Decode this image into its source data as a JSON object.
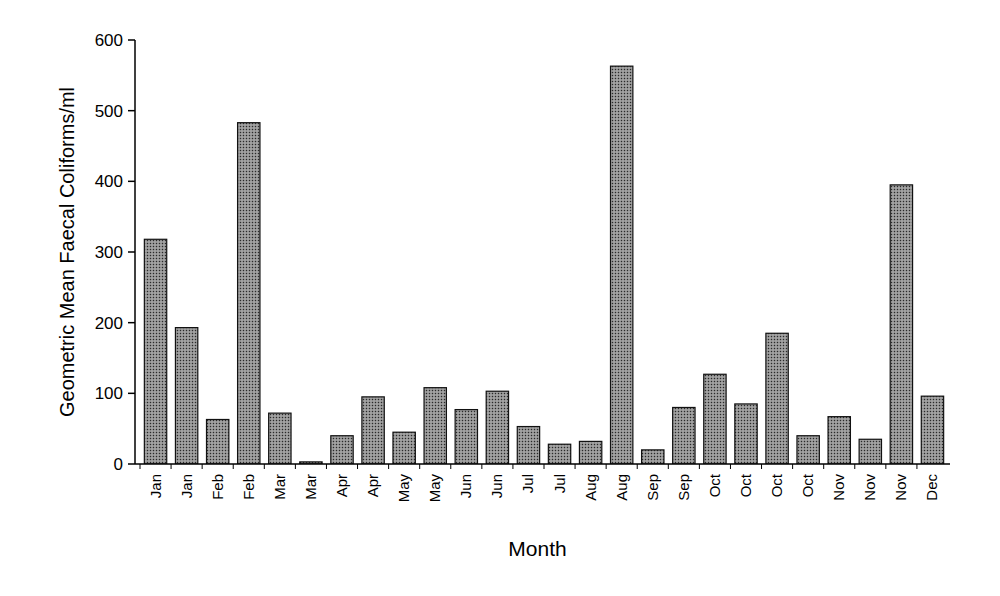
{
  "chart_data": {
    "type": "bar",
    "xlabel": "Month",
    "ylabel": "Geometric Mean Faecal Coliforms/ml",
    "categories": [
      "Jan",
      "Jan",
      "Feb",
      "Feb",
      "Mar",
      "Mar",
      "Apr",
      "Apr",
      "May",
      "May",
      "Jun",
      "Jun",
      "Jul",
      "Jul",
      "Aug",
      "Aug",
      "Sep",
      "Sep",
      "Oct",
      "Oct",
      "Oct",
      "Oct",
      "Nov",
      "Nov",
      "Nov",
      "Dec"
    ],
    "values": [
      318,
      193,
      63,
      483,
      72,
      3,
      40,
      95,
      45,
      108,
      77,
      103,
      53,
      28,
      32,
      563,
      20,
      80,
      127,
      85,
      185,
      40,
      67,
      35,
      395,
      96
    ],
    "color": "#8c8c8c",
    "ylim": [
      0,
      600
    ],
    "yticks": [
      0,
      100,
      200,
      300,
      400,
      500,
      600
    ],
    "grid": false
  }
}
